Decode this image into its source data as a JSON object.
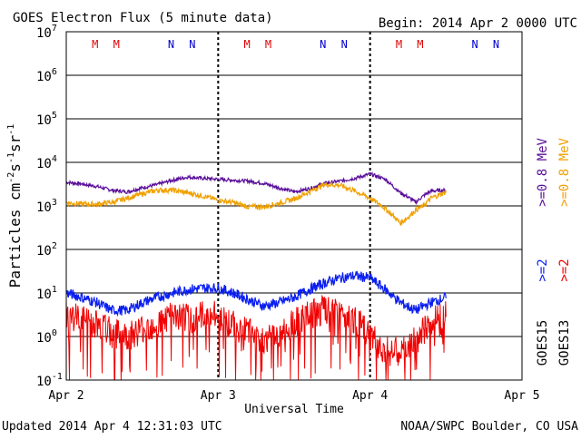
{
  "header": {
    "title": "GOES Electron Flux (5 minute data)",
    "begin": "Begin: 2014 Apr 2 0000 UTC"
  },
  "footer": {
    "updated": "Updated 2014 Apr  4 12:31:03 UTC",
    "source": "NOAA/SWPC Boulder, CO USA"
  },
  "colors": {
    "goes15_08": "#5a0f9a",
    "goes13_08": "#f0a000",
    "goes15_2": "#0a1ef0",
    "goes13_2": "#f00000",
    "threshold": "#000000",
    "m_marker": "#e00000",
    "n_marker": "#0000d0"
  },
  "chart_data": {
    "type": "line",
    "title": "GOES Electron Flux (5 minute data)",
    "xlabel": "Universal Time",
    "ylabel": "Particles cm-2s-1sr-1",
    "x_ticks": [
      "Apr 2",
      "Apr 3",
      "Apr 4",
      "Apr 5"
    ],
    "x_range_days": [
      0,
      3
    ],
    "y_scale": "log",
    "ylim": [
      0.1,
      10000000
    ],
    "y_ticks": [
      {
        "base": "10",
        "exp": "-1"
      },
      {
        "base": "10",
        "exp": "0"
      },
      {
        "base": "10",
        "exp": "1"
      },
      {
        "base": "10",
        "exp": "2"
      },
      {
        "base": "10",
        "exp": "3"
      },
      {
        "base": "10",
        "exp": "4"
      },
      {
        "base": "10",
        "exp": "5"
      },
      {
        "base": "10",
        "exp": "6"
      },
      {
        "base": "10",
        "exp": "7"
      }
    ],
    "grid": true,
    "threshold": 1000,
    "markers": [
      {
        "label": "M",
        "day": 0.19
      },
      {
        "label": "M",
        "day": 0.33
      },
      {
        "label": "N",
        "day": 0.69
      },
      {
        "label": "N",
        "day": 0.83
      },
      {
        "label": "M",
        "day": 1.19
      },
      {
        "label": "M",
        "day": 1.33
      },
      {
        "label": "N",
        "day": 1.69
      },
      {
        "label": "N",
        "day": 1.83
      },
      {
        "label": "M",
        "day": 2.19
      },
      {
        "label": "M",
        "day": 2.33
      },
      {
        "label": "N",
        "day": 2.69
      },
      {
        "label": "N",
        "day": 2.83
      }
    ],
    "day_boundaries": [
      1,
      2
    ],
    "legend": [
      {
        "text": "GOES15",
        "label": "GOES15 >=0.8 MeV",
        "color": "goes15_08"
      },
      {
        "text": "GOES13",
        "label": "GOES13 >=0.8 MeV",
        "color": "goes13_08"
      },
      {
        "text": "GOES15",
        "label": "GOES15 >=2 MeV",
        "color": "goes15_2"
      },
      {
        "text": "GOES13",
        "label": "GOES13 >=2 MeV",
        "color": "goes13_2"
      }
    ],
    "legend_labels": {
      "g15_08": ">=0.8 MeV",
      "g13_08": ">=0.8 MeV",
      "g15_2": ">=2",
      "g13_2": ">=2",
      "goes15": "GOES15",
      "goes13": "GOES13"
    },
    "series": [
      {
        "name": "GOES15 >=0.8 MeV",
        "color": "goes15_08",
        "x": [
          0,
          0.1,
          0.2,
          0.3,
          0.4,
          0.5,
          0.6,
          0.7,
          0.8,
          0.9,
          1.0,
          1.1,
          1.2,
          1.3,
          1.4,
          1.5,
          1.6,
          1.7,
          1.8,
          1.9,
          2.0,
          2.1,
          2.2,
          2.25,
          2.3,
          2.35,
          2.4,
          2.5
        ],
        "y": [
          3500,
          3200,
          2800,
          2300,
          2100,
          2600,
          3100,
          3900,
          4600,
          4300,
          4100,
          3900,
          3700,
          3300,
          2600,
          2100,
          2500,
          3300,
          3700,
          4300,
          5400,
          4100,
          2000,
          1600,
          1200,
          1700,
          2200,
          2300
        ]
      },
      {
        "name": "GOES13 >=0.8 MeV",
        "color": "goes13_08",
        "x": [
          0,
          0.1,
          0.2,
          0.3,
          0.4,
          0.5,
          0.6,
          0.7,
          0.8,
          0.9,
          1.0,
          1.1,
          1.2,
          1.3,
          1.4,
          1.5,
          1.6,
          1.7,
          1.8,
          1.9,
          2.0,
          2.08,
          2.15,
          2.2,
          2.25,
          2.3,
          2.35,
          2.4,
          2.5
        ],
        "y": [
          1200,
          1100,
          1100,
          1200,
          1500,
          1900,
          2300,
          2300,
          2000,
          1700,
          1350,
          1200,
          950,
          950,
          1150,
          1450,
          2100,
          3100,
          3000,
          2200,
          1500,
          1000,
          600,
          400,
          550,
          800,
          1000,
          1500,
          2100
        ]
      },
      {
        "name": "GOES15 >=2 MeV",
        "color": "goes15_2",
        "x": [
          0,
          0.1,
          0.2,
          0.3,
          0.4,
          0.5,
          0.6,
          0.7,
          0.8,
          0.9,
          1.0,
          1.1,
          1.2,
          1.3,
          1.4,
          1.5,
          1.6,
          1.7,
          1.8,
          1.9,
          2.0,
          2.1,
          2.2,
          2.3,
          2.4,
          2.5
        ],
        "y": [
          10,
          8,
          6,
          4,
          4,
          6,
          8,
          10,
          12,
          13,
          13,
          10,
          7,
          5,
          6,
          8,
          12,
          17,
          22,
          25,
          22,
          12,
          6,
          4,
          6,
          8
        ]
      },
      {
        "name": "GOES13 >=2 MeV",
        "color": "goes13_2",
        "x": [
          0,
          0.1,
          0.2,
          0.3,
          0.4,
          0.5,
          0.6,
          0.7,
          0.8,
          0.9,
          1.0,
          1.1,
          1.2,
          1.3,
          1.4,
          1.5,
          1.6,
          1.7,
          1.8,
          1.9,
          2.0,
          2.1,
          2.2,
          2.3,
          2.4,
          2.5
        ],
        "y": [
          3,
          2.5,
          2,
          1.2,
          1,
          1.5,
          2,
          3,
          2.5,
          3,
          3,
          1.8,
          1.2,
          0.8,
          1.2,
          2,
          3,
          4,
          3,
          2.5,
          1,
          0.5,
          0.4,
          0.8,
          2,
          4
        ]
      }
    ]
  }
}
